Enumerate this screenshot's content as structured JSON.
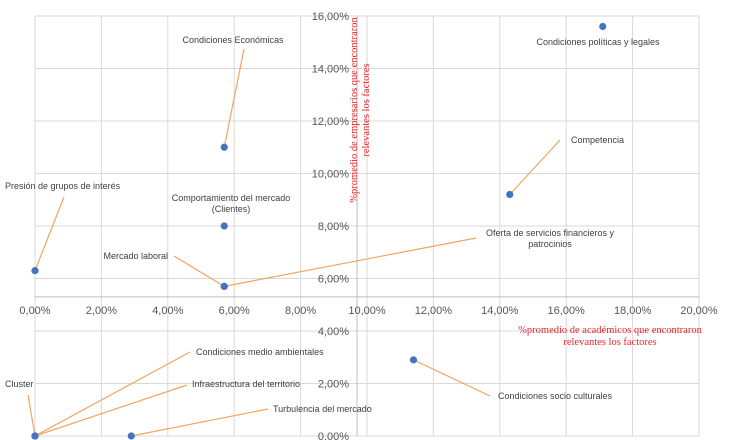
{
  "chart_data": {
    "type": "scatter",
    "xlabel": [
      "%promedio de académicos que encontraron",
      "relevantes  los factores"
    ],
    "ylabel": [
      "%promedio de empresarios que encontraron",
      "relevantes  los factores"
    ],
    "xlim": [
      0,
      20
    ],
    "ylim": [
      0,
      16
    ],
    "grid": true,
    "x_ticks": [
      "0,00%",
      "2,00%",
      "4,00%",
      "6,00%",
      "8,00%",
      "10,00%",
      "12,00%",
      "14,00%",
      "16,00%",
      "18,00%",
      "20,00%"
    ],
    "y_ticks": [
      "0,00%",
      "2,00%",
      "4,00%",
      "6,00%",
      "8,00%",
      "10,00%",
      "12,00%",
      "14,00%",
      "16,00%"
    ],
    "color": "#4472c4",
    "leader_color": "#f4a460",
    "axis_title_color": "#e8262a",
    "points": [
      {
        "label": [
          "Condiciones políticas y legales"
        ],
        "x": 17.1,
        "y": 15.6
      },
      {
        "label": [
          "Condiciones Económicas"
        ],
        "x": 5.7,
        "y": 11.0
      },
      {
        "label": [
          "Competencia"
        ],
        "x": 14.3,
        "y": 9.2
      },
      {
        "label": [
          "Comportamiento del mercado",
          "(Clientes)"
        ],
        "x": 5.7,
        "y": 8.0
      },
      {
        "label": [
          "Presión de grupos de interés"
        ],
        "x": 0.0,
        "y": 6.3
      },
      {
        "label": [
          "Mercado laboral"
        ],
        "x": 5.7,
        "y": 5.7
      },
      {
        "label": [
          "Oferta de servicios financieros y",
          "patrocinios"
        ],
        "x": 5.7,
        "y": 5.7
      },
      {
        "label": [
          "Condiciones socio culturales"
        ],
        "x": 11.4,
        "y": 2.9
      },
      {
        "label": [
          "Condiciones medio ambientales"
        ],
        "x": 0.0,
        "y": 0.0
      },
      {
        "label": [
          "Infraestructura del territorio"
        ],
        "x": 0.0,
        "y": 0.0
      },
      {
        "label": [
          "Cluster"
        ],
        "x": 0.0,
        "y": 0.0
      },
      {
        "label": [
          "Turbulencia del mercado"
        ],
        "x": 2.9,
        "y": 0.0
      }
    ]
  }
}
